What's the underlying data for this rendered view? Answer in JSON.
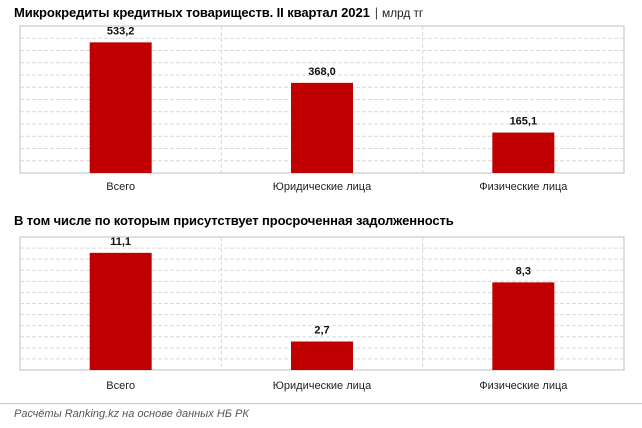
{
  "header": {
    "title": "Микрокредиты кредитных товариществ. II квартал 2021",
    "separator": "|",
    "unit": "млрд тг",
    "subtitle": "В том числе по которым присутствует просроченная задолженность",
    "source": "Расчёты Ranking.kz на основе данных НБ РК"
  },
  "colors": {
    "bar": "#c00000",
    "grid": "#d9d9d9",
    "border": "#bfbfbf"
  },
  "chart_data": [
    {
      "type": "bar",
      "categories": [
        "Всего",
        "Юридические лица",
        "Физические лица"
      ],
      "values": [
        533.2,
        368.0,
        165.1
      ],
      "value_labels": [
        "533,2",
        "368,0",
        "165,1"
      ],
      "title": "Микрокредиты кредитных товариществ. II квартал 2021",
      "ylim": [
        0,
        600
      ],
      "grid": true,
      "legend": "none"
    },
    {
      "type": "bar",
      "categories": [
        "Всего",
        "Юридические лица",
        "Физические лица"
      ],
      "values": [
        11.1,
        2.7,
        8.3
      ],
      "value_labels": [
        "11,1",
        "2,7",
        "8,3"
      ],
      "title": "В том числе по которым присутствует просроченная задолженность",
      "ylim": [
        0,
        12.6
      ],
      "grid": true,
      "legend": "none"
    }
  ]
}
